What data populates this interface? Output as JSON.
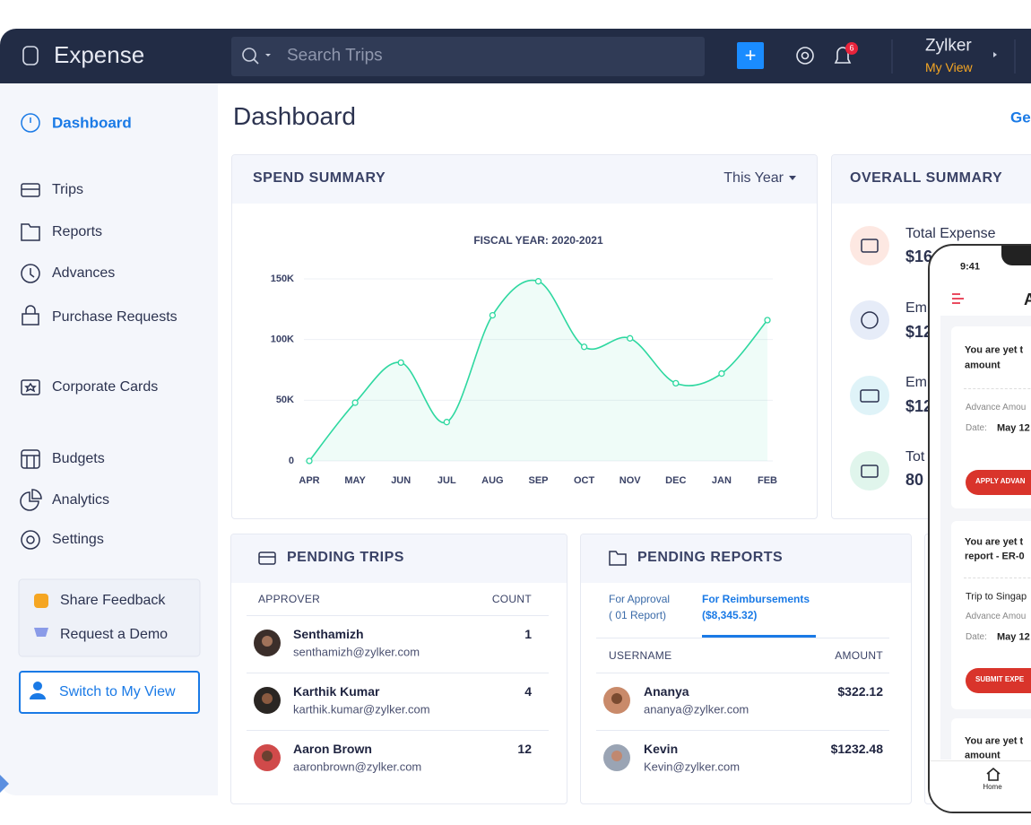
{
  "topbar": {
    "logo": "Expense",
    "search_placeholder": "Search Trips",
    "add_button": "+",
    "notification_count": "6",
    "org": "Zylker",
    "view": "My View"
  },
  "sidebar": {
    "items": [
      "Dashboard",
      "Trips",
      "Reports",
      "Advances",
      "Purchase Requests",
      "Corporate Cards",
      "Budgets",
      "Analytics",
      "Settings"
    ],
    "feedback": [
      "Share Feedback",
      "Request a Demo"
    ],
    "switch_button": "Switch to My View"
  },
  "page": {
    "title": "Dashboard",
    "link": "Ge"
  },
  "spend_summary": {
    "title": "SPEND SUMMARY",
    "period": "This Year"
  },
  "chart_data": {
    "type": "line",
    "title": "FISCAL YEAR: 2020-2021",
    "categories": [
      "APR",
      "MAY",
      "JUN",
      "JUL",
      "AUG",
      "SEP",
      "OCT",
      "NOV",
      "DEC",
      "JAN",
      "FEB"
    ],
    "values": [
      0,
      48000,
      81000,
      32000,
      120000,
      148000,
      94000,
      101000,
      64000,
      72000,
      116000
    ],
    "color": "#2ed8a0",
    "ylim": [
      0,
      150000
    ],
    "yticks": [
      0,
      {
        "value": 50000,
        "label": "50K"
      },
      {
        "value": 100000,
        "label": "100K"
      },
      {
        "value": 150000,
        "label": "150K"
      }
    ],
    "grid": true
  },
  "overall_summary": {
    "title": "OVERALL SUMMARY",
    "items": [
      {
        "label": "Total Expense",
        "value": "$16"
      },
      {
        "label": "Em",
        "value": "$12"
      },
      {
        "label": "Em",
        "value": "$12"
      },
      {
        "label": "Tot",
        "value": "80"
      }
    ]
  },
  "pending_trips": {
    "title": "PENDING TRIPS",
    "columns": [
      "APPROVER",
      "COUNT"
    ],
    "rows": [
      {
        "name": "Senthamizh",
        "email": "senthamizh@zylker.com",
        "count": 1
      },
      {
        "name": "Karthik Kumar",
        "email": "karthik.kumar@zylker.com",
        "count": 4
      },
      {
        "name": "Aaron Brown",
        "email": "aaronbrown@zylker.com",
        "count": 12
      }
    ]
  },
  "pending_reports": {
    "title": "PENDING REPORTS",
    "tabs": [
      {
        "label": "For Approval",
        "detail": "( 01 Report)"
      },
      {
        "label": "For Reimbursements",
        "detail": "($8,345.32)"
      }
    ],
    "columns": [
      "USERNAME",
      "AMOUNT"
    ],
    "rows": [
      {
        "name": "Ananya",
        "email": "ananya@zylker.com",
        "amount": "$322.12"
      },
      {
        "name": "Kevin",
        "email": "Kevin@zylker.com",
        "amount": "$1232.48"
      }
    ]
  },
  "phone": {
    "time": "9:41",
    "title": "A",
    "cards": [
      {
        "heading": [
          "You are yet t",
          "amount"
        ],
        "lines": [
          "Advance Amou"
        ],
        "date_label": "Date:",
        "date": "May 12",
        "button": "APPLY ADVAN"
      },
      {
        "heading": [
          "You are yet t",
          "report - ER-0"
        ],
        "lines": [
          "Trip to Singap",
          "Advance Amou"
        ],
        "date_label": "Date:",
        "date": "May 12",
        "button": "SUBMIT EXPE"
      },
      {
        "heading": [
          "You are yet t",
          "amount"
        ]
      }
    ],
    "nav": "Home"
  }
}
